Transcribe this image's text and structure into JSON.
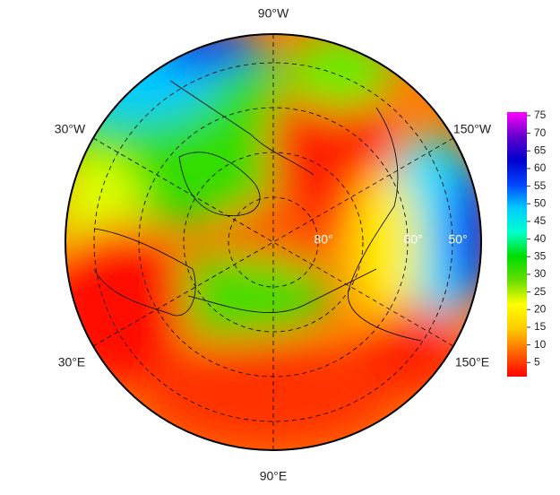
{
  "map": {
    "longitude_labels": [
      "90°W",
      "30°W",
      "150°W",
      "30°E",
      "150°E",
      "90°E"
    ],
    "latitude_labels": [
      "80°",
      "60°",
      "50°"
    ],
    "colorbar": {
      "ylim": [
        1,
        76
      ],
      "yticks": [
        5,
        10,
        15,
        20,
        25,
        30,
        35,
        40,
        45,
        50,
        55,
        60,
        65,
        70,
        75
      ],
      "colors": [
        "#ff0000",
        "#ff6600",
        "#ffcc00",
        "#ffff00",
        "#66dd00",
        "#00dd00",
        "#00ffcc",
        "#00ccff",
        "#0044ff",
        "#0000cc",
        "#6600cc",
        "#ff00ff"
      ]
    }
  }
}
